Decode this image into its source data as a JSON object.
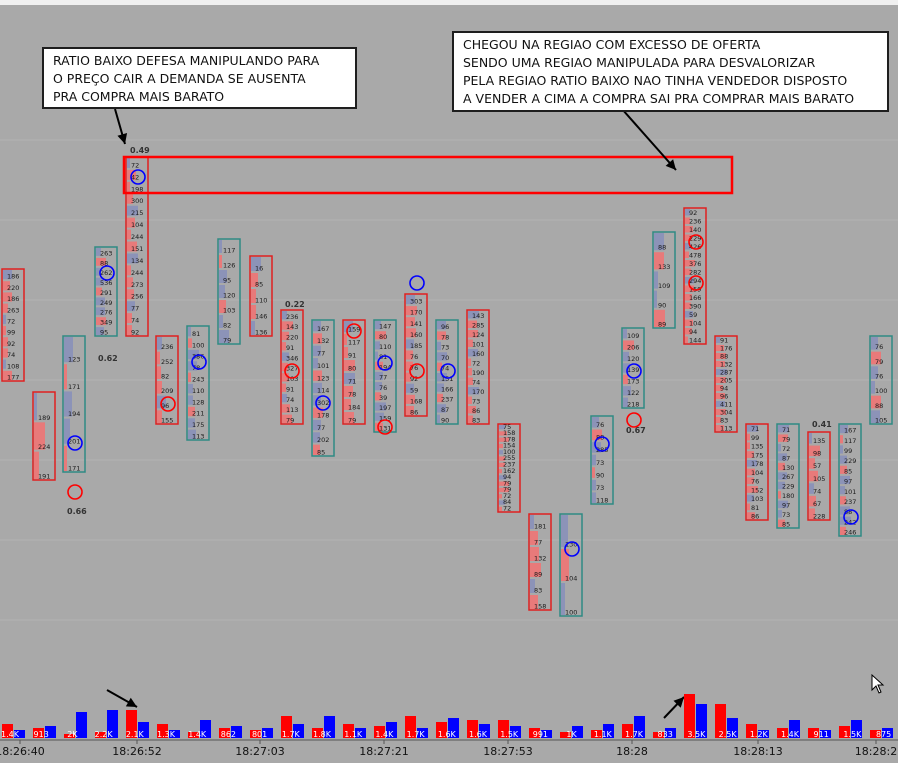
{
  "annotations": {
    "left": [
      "RATIO BAIXO DEFESA MANIPULANDO PARA",
      "O PREÇO CAIR A DEMANDA SE AUSENTA",
      "PRA COMPRA MAIS BARATO"
    ],
    "right": [
      "CHEGOU NA REGIAO COM EXCESSO DE OFERTA",
      "SENDO UMA REGIAO MANIPULADA PARA DESVALORIZAR",
      "PELA REGIAO RATIO BAIXO NAO TINHA VENDEDOR DISPOSTO",
      "A VENDER A CIMA A COMPRA SAI PRA COMPRAR MAIS BARATO"
    ]
  },
  "chart_data": {
    "type": "bar",
    "title": "",
    "time_labels": [
      "18:26:40",
      "18:26:52",
      "18:27:03",
      "18:27:21",
      "18:27:53",
      "18:28",
      "18:28:13",
      "18:28:2"
    ],
    "ratio_labels": [
      "0.49",
      "0.62",
      "0.66",
      "0.22",
      "0.67",
      "0.41"
    ],
    "volume_labels": [
      "1.4K",
      "913",
      "2K",
      "2.2K",
      "2.1K",
      "1.3K",
      "1.4K",
      "862",
      "801",
      "1.7K",
      "1.8K",
      "1.1K",
      "1.4K",
      "1.7K",
      "1.6K",
      "1.6K",
      "1.5K",
      "991",
      "1K",
      "1.1K",
      "1.7K",
      "833",
      "3.5K",
      "2.5K",
      "1.2K",
      "1.4K",
      "911",
      "1.5K",
      "875"
    ],
    "footprint_cells": {
      "c1": [
        "186",
        "220",
        "186",
        "263",
        "72",
        "99",
        "92",
        "74",
        "108",
        "177"
      ],
      "c2": [
        "189",
        "224",
        "191"
      ],
      "c3": [
        "123",
        "171",
        "194",
        "201",
        "171"
      ],
      "c4": [
        "263",
        "88",
        "262",
        "536",
        "291",
        "249",
        "276",
        "349",
        "95"
      ],
      "c5": [
        "72",
        "42",
        "198",
        "300",
        "215",
        "104",
        "244",
        "151",
        "134",
        "244",
        "273",
        "256",
        "77",
        "74",
        "92"
      ],
      "c6": [
        "236",
        "252",
        "82",
        "209",
        "96",
        "155"
      ],
      "c7": [
        "81",
        "100",
        "386",
        "78",
        "243",
        "110",
        "128",
        "211",
        "175",
        "113"
      ],
      "c8": [
        "117",
        "126",
        "95",
        "120",
        "103",
        "82",
        "79"
      ],
      "c9": [
        "16",
        "85",
        "110",
        "146",
        "136"
      ],
      "c10": [
        "236",
        "143",
        "220",
        "91",
        "346",
        "327",
        "103",
        "91",
        "74",
        "113",
        "79"
      ],
      "c11": [
        "167",
        "132",
        "77",
        "101",
        "123",
        "114",
        "302",
        "178",
        "77",
        "202",
        "85"
      ],
      "c12": [
        "159",
        "117",
        "91",
        "80",
        "71",
        "78",
        "184",
        "79"
      ],
      "c13": [
        "147",
        "80",
        "110",
        "81",
        "194",
        "77",
        "76",
        "39",
        "197",
        "159",
        "131"
      ],
      "c14": [
        "303",
        "170",
        "141",
        "160",
        "185",
        "76",
        "76",
        "92",
        "59",
        "168",
        "86"
      ],
      "c15": [
        "96",
        "78",
        "73",
        "70",
        "74",
        "151",
        "166",
        "237",
        "87",
        "90"
      ],
      "c16": [
        "143",
        "285",
        "124",
        "101",
        "160",
        "72",
        "190",
        "74",
        "170",
        "73",
        "86",
        "83"
      ],
      "c17": [
        "75",
        "158",
        "178",
        "154",
        "100",
        "255",
        "237",
        "162",
        "94",
        "79",
        "79",
        "72",
        "84",
        "72"
      ],
      "c18": [
        "181",
        "77",
        "132",
        "89",
        "83",
        "158"
      ],
      "c19": [
        "130",
        "104",
        "100"
      ],
      "c20": [
        "76",
        "88",
        "285",
        "73",
        "90",
        "73",
        "118"
      ],
      "c21": [
        "109",
        "206",
        "120",
        "139",
        "173",
        "122",
        "218"
      ],
      "c22": [
        "88",
        "133",
        "109",
        "90",
        "89"
      ],
      "c23": [
        "92",
        "236",
        "140",
        "229",
        "426",
        "478",
        "376",
        "282",
        "294",
        "159",
        "166",
        "390",
        "59",
        "104",
        "94",
        "144"
      ],
      "c24": [
        "91",
        "176",
        "88",
        "132",
        "287",
        "205",
        "94",
        "96",
        "411",
        "304",
        "83",
        "113"
      ],
      "c25": [
        "71",
        "99",
        "135",
        "175",
        "178",
        "104",
        "76",
        "152",
        "103",
        "81",
        "86"
      ],
      "c26": [
        "71",
        "79",
        "72",
        "87",
        "130",
        "267",
        "229",
        "180",
        "97",
        "73",
        "85"
      ],
      "c27": [
        "135",
        "98",
        "57",
        "105",
        "74",
        "67",
        "228"
      ],
      "c28": [
        "167",
        "117",
        "99",
        "229",
        "85",
        "97",
        "101",
        "237",
        "88",
        "242",
        "246"
      ],
      "c29": [
        "76",
        "79",
        "76",
        "100",
        "88",
        "105"
      ]
    }
  },
  "colors": {
    "background": "#a9a9a9",
    "bid": "#ff0000",
    "ask": "#0000ff",
    "box_red": "#e02020",
    "box_teal": "#2f8a84",
    "highlight": "#ff0000",
    "cell_red": "#e87a7a",
    "cell_blue": "#8c93b8"
  }
}
